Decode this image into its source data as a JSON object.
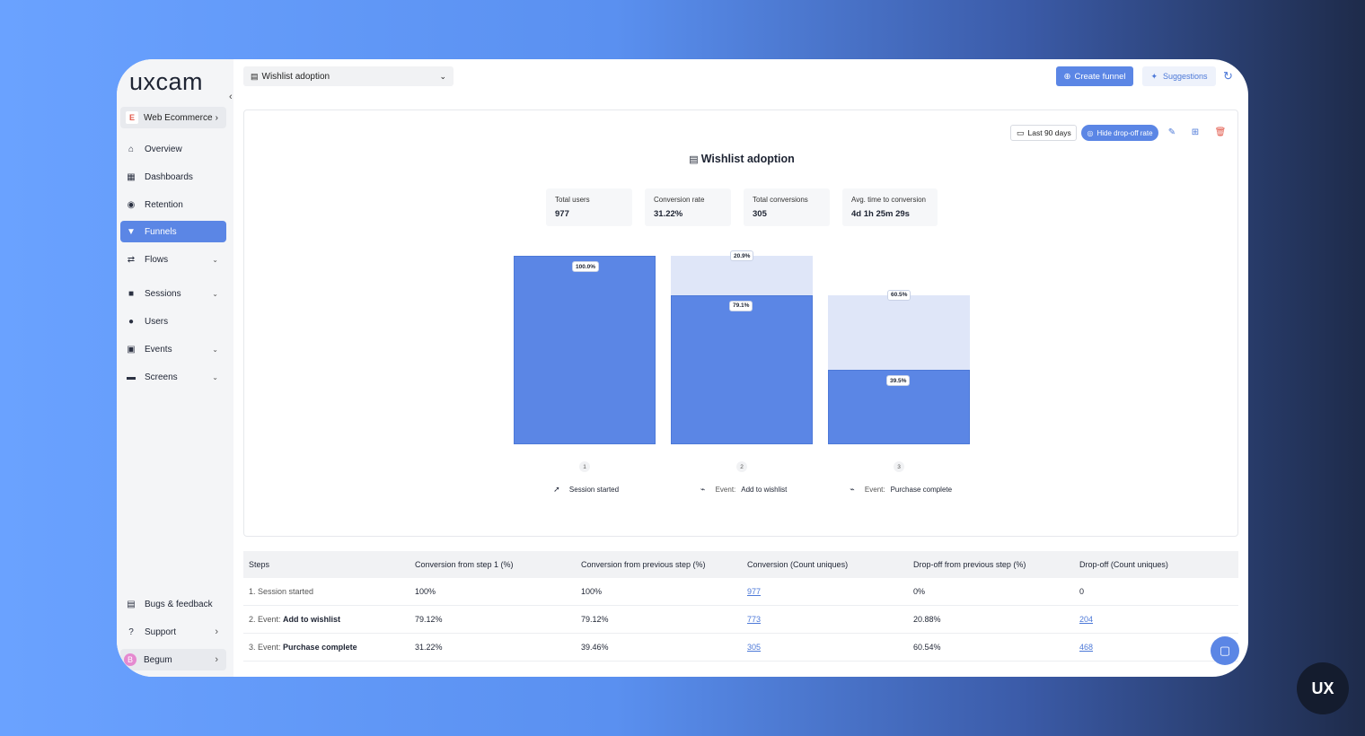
{
  "sidebar": {
    "logo_text": "uxcam",
    "collapse_icon": "chevron-left-icon",
    "app": {
      "badge": "E",
      "label": "Web Ecommerce"
    },
    "items": [
      {
        "label": "Overview",
        "icon": "home-icon"
      },
      {
        "label": "Dashboards",
        "icon": "dashboard-icon"
      },
      {
        "label": "Retention",
        "icon": "retention-icon"
      },
      {
        "label": "Funnels",
        "icon": "funnel-icon",
        "active": true
      },
      {
        "label": "Flows",
        "icon": "flows-icon"
      },
      {
        "label": "Sessions",
        "icon": "video-icon"
      },
      {
        "label": "Users",
        "icon": "users-icon"
      },
      {
        "label": "Events",
        "icon": "events-icon"
      },
      {
        "label": "Screens",
        "icon": "monitor-icon"
      }
    ],
    "bottom": [
      {
        "label": "Bugs & feedback",
        "icon": "document-icon"
      },
      {
        "label": "Support",
        "icon": "help-icon"
      }
    ],
    "user": {
      "initial": "B",
      "name": "Begum"
    }
  },
  "topbar": {
    "funnel_select": "Wishlist adoption",
    "create_label": "Create funnel",
    "suggest_label": "Suggestions"
  },
  "card": {
    "date_range": "Last 90 days",
    "hide_dropoff_label": "Hide drop-off rate",
    "title": "Wishlist adoption",
    "stats": [
      {
        "label": "Total users",
        "value": "977"
      },
      {
        "label": "Conversion rate",
        "value": "31.22%"
      },
      {
        "label": "Total conversions",
        "value": "305"
      },
      {
        "label": "Avg. time to conversion",
        "value": "4d 1h 25m 29s"
      }
    ]
  },
  "chart_data": {
    "type": "bar",
    "categories": [
      "Session started",
      "Add to wishlist",
      "Purchase complete"
    ],
    "step_numbers": [
      "1",
      "2",
      "3"
    ],
    "step_prefixes": [
      "",
      "Event:",
      "Event:"
    ],
    "conversion_pct": [
      100.0,
      79.1,
      39.5
    ],
    "conversion_labels": [
      "100.0%",
      "79.1%",
      "39.5%"
    ],
    "dropoff_labels": [
      "",
      "20.9%",
      "60.5%"
    ],
    "colors": {
      "conversion": "#5b86e5",
      "dropoff": "#dfe6f8"
    },
    "ylim": [
      0,
      100
    ]
  },
  "table": {
    "headers": [
      "Steps",
      "Conversion from step 1 (%)",
      "Conversion from previous step (%)",
      "Conversion (Count uniques)",
      "Drop-off from previous step (%)",
      "Drop-off (Count uniques)"
    ],
    "rows": [
      {
        "prefix": "1.",
        "name": "Session started",
        "c1": "100%",
        "c2": "100%",
        "c3": "977",
        "c4": "0%",
        "c5": "0"
      },
      {
        "prefix": "2. Event:",
        "name": "Add to wishlist",
        "c1": "79.12%",
        "c2": "79.12%",
        "c3": "773",
        "c4": "20.88%",
        "c5": "204"
      },
      {
        "prefix": "3. Event:",
        "name": "Purchase complete",
        "c1": "31.22%",
        "c2": "39.46%",
        "c3": "305",
        "c4": "60.54%",
        "c5": "468"
      }
    ]
  },
  "corner_badge": "UX"
}
